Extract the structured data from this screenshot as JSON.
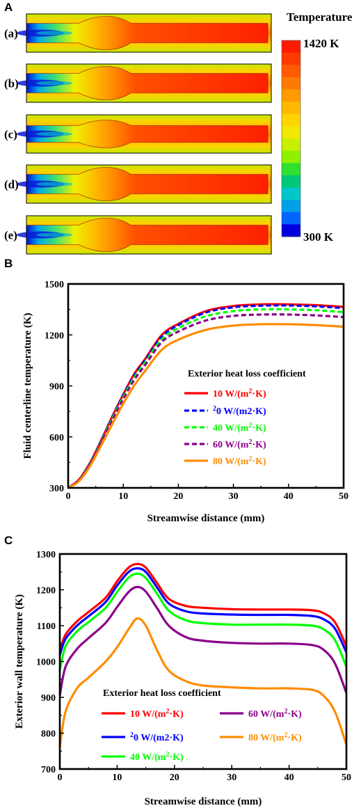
{
  "panel_letters": {
    "a": "A",
    "b": "B",
    "c": "C"
  },
  "panel_a": {
    "case_labels": [
      "(a)",
      "(b)",
      "(c)",
      "(d)",
      "(e)"
    ],
    "colorbar": {
      "title": "Temperature",
      "max_label": "1420 K",
      "min_label": "300 K",
      "colors": [
        "#ff1a00",
        "#ff3a00",
        "#ff5a00",
        "#ff7a00",
        "#ff9a00",
        "#ffba00",
        "#ffd400",
        "#f0e800",
        "#c8f000",
        "#90f000",
        "#30e030",
        "#00c878",
        "#00c8c8",
        "#00a0e8",
        "#0064ff",
        "#0000e0"
      ]
    }
  },
  "chart_data": [
    {
      "type": "line",
      "panel": "B",
      "xlabel": "Streamwise distance (mm)",
      "ylabel": "Fluid centerline temperature (K)",
      "xlim": [
        0,
        50
      ],
      "ylim": [
        300,
        1500
      ],
      "xticks": [
        "0",
        "10",
        "20",
        "30",
        "40",
        "50"
      ],
      "yticks": [
        "300",
        "600",
        "900",
        "1200",
        "1500"
      ],
      "legend_title": "Exterior heat loss coefficient",
      "x": [
        0,
        2,
        4,
        6,
        8,
        10,
        12,
        14,
        17,
        20,
        25,
        30,
        35,
        40,
        45,
        50
      ],
      "series": [
        {
          "name": "10 W/(m2·K)",
          "color": "#ff0000",
          "dash": "solid",
          "values": [
            300,
            350,
            450,
            580,
            720,
            850,
            970,
            1060,
            1200,
            1265,
            1340,
            1370,
            1380,
            1380,
            1375,
            1365
          ]
        },
        {
          "name": "20 W/(m2·K)",
          "color": "#0000ff",
          "dash": "dashed",
          "values": [
            300,
            348,
            448,
            578,
            715,
            845,
            962,
            1052,
            1190,
            1258,
            1332,
            1363,
            1372,
            1373,
            1368,
            1358
          ]
        },
        {
          "name": "40 W/(m2·K)",
          "color": "#00ff00",
          "dash": "dashed",
          "values": [
            300,
            346,
            445,
            572,
            708,
            836,
            950,
            1040,
            1175,
            1240,
            1310,
            1340,
            1350,
            1350,
            1345,
            1335
          ]
        },
        {
          "name": "60 W/(m2·K)",
          "color": "#8b008b",
          "dash": "dashed",
          "values": [
            300,
            344,
            440,
            565,
            698,
            824,
            936,
            1024,
            1158,
            1220,
            1285,
            1312,
            1320,
            1320,
            1315,
            1305
          ]
        },
        {
          "name": "80 W/(m2·K)",
          "color": "#ff8c00",
          "dash": "solid",
          "values": [
            300,
            340,
            430,
            550,
            675,
            795,
            903,
            990,
            1112,
            1172,
            1230,
            1255,
            1263,
            1263,
            1258,
            1248
          ]
        }
      ]
    },
    {
      "type": "line",
      "panel": "C",
      "xlabel": "Streamwise distance (mm)",
      "ylabel": "Exterior wall temperature (K)",
      "xlim": [
        0,
        50
      ],
      "ylim": [
        700,
        1300
      ],
      "xticks": [
        "0",
        "10",
        "20",
        "30",
        "40",
        "50"
      ],
      "yticks": [
        "700",
        "800",
        "900",
        "1000",
        "1100",
        "1200",
        "1300"
      ],
      "legend_title": "Exterior heat loss coefficient",
      "x": [
        0,
        1,
        3,
        5,
        8,
        10,
        12,
        13.5,
        15,
        17,
        19,
        22,
        25,
        30,
        35,
        40,
        44,
        46,
        48,
        50
      ],
      "series": [
        {
          "name": "10 W/(m2·K)",
          "color": "#ff0000",
          "dash": "solid",
          "values": [
            1030,
            1075,
            1112,
            1138,
            1178,
            1224,
            1262,
            1272,
            1262,
            1218,
            1175,
            1155,
            1150,
            1146,
            1145,
            1145,
            1143,
            1135,
            1110,
            1042
          ]
        },
        {
          "name": "20 W/(m2·K)",
          "color": "#0000ff",
          "dash": "solid",
          "values": [
            1018,
            1063,
            1100,
            1126,
            1166,
            1212,
            1250,
            1260,
            1250,
            1206,
            1162,
            1140,
            1134,
            1131,
            1130,
            1130,
            1127,
            1118,
            1092,
            1025
          ]
        },
        {
          "name": "40 W/(m2·K)",
          "color": "#00ff00",
          "dash": "solid",
          "values": [
            975,
            1042,
            1084,
            1110,
            1150,
            1194,
            1234,
            1245,
            1233,
            1188,
            1142,
            1115,
            1107,
            1103,
            1103,
            1103,
            1100,
            1090,
            1060,
            985
          ]
        },
        {
          "name": "60 W/(m2·K)",
          "color": "#8b008b",
          "dash": "solid",
          "values": [
            905,
            985,
            1035,
            1065,
            1108,
            1152,
            1194,
            1208,
            1195,
            1148,
            1100,
            1068,
            1058,
            1052,
            1050,
            1050,
            1046,
            1033,
            995,
            912
          ]
        },
        {
          "name": "80 W/(m2·K)",
          "color": "#ff8c00",
          "dash": "solid",
          "values": [
            760,
            860,
            925,
            955,
            1000,
            1040,
            1090,
            1120,
            1100,
            1030,
            975,
            945,
            933,
            928,
            925,
            925,
            921,
            905,
            860,
            768
          ]
        }
      ]
    }
  ]
}
